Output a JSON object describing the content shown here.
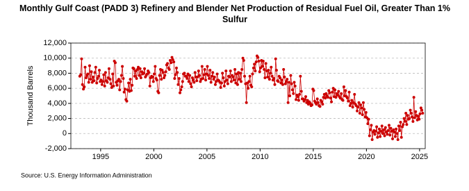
{
  "chart_data": {
    "type": "line",
    "title": "Monthly Gulf Coast (PADD 3) Refinery and Blender Net Production of Residual Fuel Oil, Greater Than 1% Sulfur",
    "y_label": "Thousand Barrels",
    "source": "Source: U.S. Energy Information Administration",
    "xlim": [
      1992.2,
      2025.53
    ],
    "xticks": [
      1995,
      2000,
      2005,
      2010,
      2015,
      2020,
      2025
    ],
    "ylim": [
      -2000,
      12000
    ],
    "yticks": [
      {
        "value": -2000,
        "label": "-2,000"
      },
      0,
      {
        "value": 2000,
        "label": "2,000"
      },
      {
        "value": 4000,
        "label": "4,000"
      },
      {
        "value": 6000,
        "label": "6,000"
      },
      {
        "value": 8000,
        "label": "8,000"
      },
      {
        "value": 10000,
        "label": "10,000"
      },
      {
        "value": 12000,
        "label": "12,000"
      }
    ],
    "grid": true,
    "x": [
      1993.04,
      1993.13,
      1993.21,
      1993.29,
      1993.38,
      1993.46,
      1993.54,
      1993.63,
      1993.71,
      1993.79,
      1993.88,
      1993.96,
      1994.04,
      1994.13,
      1994.21,
      1994.29,
      1994.38,
      1994.46,
      1994.54,
      1994.63,
      1994.71,
      1994.79,
      1994.88,
      1994.96,
      1995.04,
      1995.13,
      1995.21,
      1995.29,
      1995.38,
      1995.46,
      1995.54,
      1995.63,
      1995.71,
      1995.79,
      1995.88,
      1995.96,
      1996.04,
      1996.13,
      1996.21,
      1996.29,
      1996.38,
      1996.46,
      1996.54,
      1996.63,
      1996.71,
      1996.79,
      1996.88,
      1996.96,
      1997.04,
      1997.13,
      1997.21,
      1997.29,
      1997.38,
      1997.46,
      1997.54,
      1997.63,
      1997.71,
      1997.79,
      1997.88,
      1997.96,
      1998.04,
      1998.13,
      1998.21,
      1998.29,
      1998.38,
      1998.46,
      1998.54,
      1998.63,
      1998.71,
      1998.79,
      1998.88,
      1998.96,
      1999.04,
      1999.13,
      1999.21,
      1999.29,
      1999.38,
      1999.46,
      1999.54,
      1999.63,
      1999.71,
      1999.79,
      1999.88,
      1999.96,
      2000.04,
      2000.13,
      2000.21,
      2000.29,
      2000.38,
      2000.46,
      2000.54,
      2000.63,
      2000.71,
      2000.79,
      2000.88,
      2000.96,
      2001.04,
      2001.13,
      2001.21,
      2001.29,
      2001.38,
      2001.46,
      2001.54,
      2001.63,
      2001.71,
      2001.79,
      2001.88,
      2001.96,
      2002.04,
      2002.13,
      2002.21,
      2002.29,
      2002.38,
      2002.46,
      2002.54,
      2002.63,
      2002.71,
      2002.79,
      2002.88,
      2002.96,
      2003.04,
      2003.13,
      2003.21,
      2003.29,
      2003.38,
      2003.46,
      2003.54,
      2003.63,
      2003.71,
      2003.79,
      2003.88,
      2003.96,
      2004.04,
      2004.13,
      2004.21,
      2004.29,
      2004.38,
      2004.46,
      2004.54,
      2004.63,
      2004.71,
      2004.79,
      2004.88,
      2004.96,
      2005.04,
      2005.13,
      2005.21,
      2005.29,
      2005.38,
      2005.46,
      2005.54,
      2005.63,
      2005.71,
      2005.79,
      2005.88,
      2005.96,
      2006.04,
      2006.13,
      2006.21,
      2006.29,
      2006.38,
      2006.46,
      2006.54,
      2006.63,
      2006.71,
      2006.79,
      2006.88,
      2006.96,
      2007.04,
      2007.13,
      2007.21,
      2007.29,
      2007.38,
      2007.46,
      2007.54,
      2007.63,
      2007.71,
      2007.79,
      2007.88,
      2007.96,
      2008.04,
      2008.13,
      2008.21,
      2008.29,
      2008.38,
      2008.46,
      2008.54,
      2008.63,
      2008.71,
      2008.79,
      2008.88,
      2008.96,
      2009.04,
      2009.13,
      2009.21,
      2009.29,
      2009.38,
      2009.46,
      2009.54,
      2009.63,
      2009.71,
      2009.79,
      2009.88,
      2009.96,
      2010.04,
      2010.13,
      2010.21,
      2010.29,
      2010.38,
      2010.46,
      2010.54,
      2010.63,
      2010.71,
      2010.79,
      2010.88,
      2010.96,
      2011.04,
      2011.13,
      2011.21,
      2011.29,
      2011.38,
      2011.46,
      2011.54,
      2011.63,
      2011.71,
      2011.79,
      2011.88,
      2011.96,
      2012.04,
      2012.13,
      2012.21,
      2012.29,
      2012.38,
      2012.46,
      2012.54,
      2012.63,
      2012.71,
      2012.79,
      2012.88,
      2012.96,
      2013.04,
      2013.13,
      2013.21,
      2013.29,
      2013.38,
      2013.46,
      2013.54,
      2013.63,
      2013.71,
      2013.79,
      2013.88,
      2013.96,
      2014.04,
      2014.13,
      2014.21,
      2014.29,
      2014.38,
      2014.46,
      2014.54,
      2014.63,
      2014.71,
      2014.79,
      2014.88,
      2014.96,
      2015.04,
      2015.13,
      2015.21,
      2015.29,
      2015.38,
      2015.46,
      2015.54,
      2015.63,
      2015.71,
      2015.79,
      2015.88,
      2015.96,
      2016.04,
      2016.13,
      2016.21,
      2016.29,
      2016.38,
      2016.46,
      2016.54,
      2016.63,
      2016.71,
      2016.79,
      2016.88,
      2016.96,
      2017.04,
      2017.13,
      2017.21,
      2017.29,
      2017.38,
      2017.46,
      2017.54,
      2017.63,
      2017.71,
      2017.79,
      2017.88,
      2017.96,
      2018.04,
      2018.13,
      2018.21,
      2018.29,
      2018.38,
      2018.46,
      2018.54,
      2018.63,
      2018.71,
      2018.79,
      2018.88,
      2018.96,
      2019.04,
      2019.13,
      2019.21,
      2019.29,
      2019.38,
      2019.46,
      2019.54,
      2019.63,
      2019.71,
      2019.79,
      2019.88,
      2019.96,
      2020.04,
      2020.13,
      2020.21,
      2020.29,
      2020.38,
      2020.46,
      2020.54,
      2020.63,
      2020.71,
      2020.79,
      2020.88,
      2020.96,
      2021.04,
      2021.13,
      2021.21,
      2021.29,
      2021.38,
      2021.46,
      2021.54,
      2021.63,
      2021.71,
      2021.79,
      2021.88,
      2021.96,
      2022.04,
      2022.13,
      2022.21,
      2022.29,
      2022.38,
      2022.46,
      2022.54,
      2022.63,
      2022.71,
      2022.79,
      2022.88,
      2022.96,
      2023.04,
      2023.13,
      2023.21,
      2023.29,
      2023.38,
      2023.46,
      2023.54,
      2023.63,
      2023.71,
      2023.79,
      2023.88,
      2023.96,
      2024.04,
      2024.13,
      2024.21,
      2024.29,
      2024.38,
      2024.46,
      2024.54,
      2024.63,
      2024.71,
      2024.79,
      2024.88,
      2024.96,
      2025.04,
      2025.13,
      2025.21,
      2025.29
    ],
    "series": [
      {
        "color": "#cc0000",
        "values": [
          7600,
          7800,
          9900,
          6500,
          5900,
          6200,
          8800,
          7400,
          7700,
          7900,
          6800,
          9000,
          7200,
          8200,
          6800,
          7500,
          7000,
          8100,
          8800,
          6700,
          7300,
          7600,
          8400,
          6900,
          7100,
          6500,
          6900,
          7800,
          6300,
          8100,
          7000,
          6800,
          7400,
          8600,
          7200,
          6600,
          6100,
          7900,
          6300,
          9600,
          9400,
          6800,
          6400,
          7000,
          7200,
          5800,
          6900,
          7700,
          8900,
          7300,
          5500,
          5900,
          4500,
          4300,
          5800,
          6700,
          5600,
          7200,
          5700,
          6400,
          8700,
          8600,
          7600,
          8300,
          7300,
          8500,
          8800,
          7700,
          8600,
          7400,
          8200,
          7900,
          8000,
          8600,
          7500,
          7700,
          7900,
          8300,
          8100,
          6300,
          7400,
          7600,
          7500,
          6900,
          7900,
          8900,
          7300,
          7100,
          5600,
          5400,
          7700,
          8500,
          7200,
          8400,
          8100,
          7400,
          7700,
          8200,
          9100,
          9300,
          8700,
          8500,
          9700,
          9400,
          10100,
          9800,
          9500,
          7300,
          7800,
          8700,
          8100,
          6500,
          7300,
          5400,
          5800,
          6200,
          6900,
          7900,
          8000,
          7600,
          7600,
          7300,
          7900,
          6900,
          7700,
          6600,
          6200,
          7400,
          7100,
          6800,
          8100,
          7500,
          7000,
          7500,
          8300,
          7700,
          6900,
          7200,
          8900,
          7300,
          7800,
          8500,
          7100,
          7900,
          8900,
          7700,
          7300,
          8400,
          6800,
          7600,
          8100,
          7200,
          7500,
          6500,
          6900,
          7900,
          7100,
          7000,
          6800,
          6100,
          6700,
          8000,
          7400,
          6300,
          6900,
          8300,
          7100,
          6600,
          7600,
          7500,
          8300,
          6900,
          7700,
          7500,
          7100,
          8500,
          6700,
          7900,
          6500,
          8100,
          7200,
          8000,
          6900,
          8500,
          10000,
          9700,
          7600,
          6600,
          4100,
          6700,
          6000,
          6900,
          7600,
          6400,
          6200,
          7900,
          8700,
          9200,
          8300,
          9500,
          10300,
          10100,
          9600,
          8200,
          8700,
          9700,
          8900,
          9600,
          8500,
          7400,
          9300,
          8300,
          7500,
          8400,
          7200,
          8000,
          8800,
          7600,
          7100,
          7300,
          6500,
          9900,
          8400,
          7000,
          6900,
          7600,
          7400,
          6700,
          7100,
          6500,
          8500,
          7500,
          6600,
          6900,
          7200,
          4100,
          6800,
          5000,
          7700,
          6600,
          5800,
          5300,
          6800,
          6300,
          4500,
          5100,
          4900,
          4400,
          5200,
          7600,
          5600,
          4600,
          4600,
          4300,
          4500,
          4900,
          4100,
          4400,
          3900,
          4200,
          4000,
          3700,
          3800,
          5900,
          5700,
          4300,
          4100,
          3900,
          4600,
          4100,
          3700,
          3600,
          4400,
          4200,
          3900,
          4800,
          5200,
          4700,
          5300,
          5000,
          4800,
          5700,
          5400,
          4700,
          4200,
          5500,
          6000,
          4900,
          5800,
          4800,
          5300,
          5100,
          5600,
          4900,
          4700,
          5300,
          4500,
          4400,
          6200,
          5000,
          5700,
          4900,
          4700,
          4300,
          5500,
          3700,
          4000,
          4400,
          3500,
          4100,
          5200,
          3900,
          3700,
          3000,
          3500,
          4100,
          2700,
          3800,
          3400,
          2500,
          4100,
          3200,
          2200,
          2800,
          2100,
          1300,
          1900,
          -300,
          500,
          1100,
          -800,
          200,
          400,
          -100,
          300,
          900,
          -500,
          100,
          600,
          -400,
          300,
          1000,
          0,
          500,
          -300,
          800,
          200,
          -100,
          400,
          1100,
          -200,
          700,
          300,
          -700,
          500,
          200,
          -400,
          600,
          0,
          -800,
          1000,
          400,
          1500,
          -500,
          900,
          1200,
          2000,
          1600,
          2700,
          1200,
          2400,
          1900,
          2000,
          3100,
          2700,
          2200,
          1600,
          4800,
          2100,
          2900,
          2400,
          1800,
          2300,
          1900,
          2600,
          3400,
          3100,
          2700
        ]
      }
    ]
  }
}
